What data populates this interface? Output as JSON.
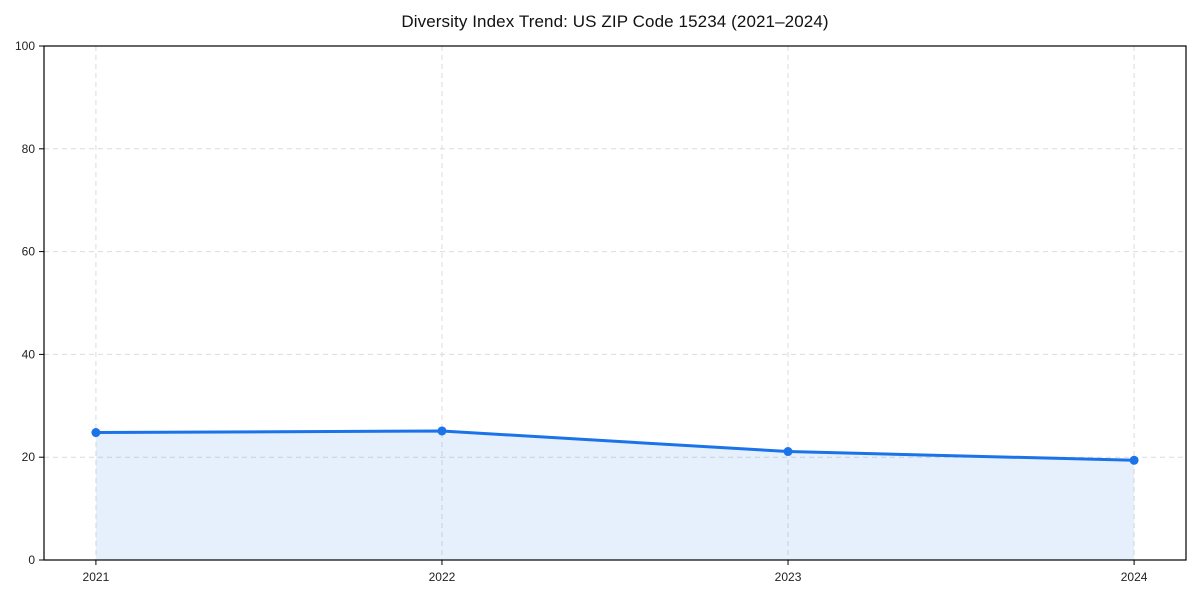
{
  "chart_data": {
    "type": "area",
    "title": "Diversity Index Trend: US ZIP Code 15234 (2021–2024)",
    "categories": [
      "2021",
      "2022",
      "2023",
      "2024"
    ],
    "series": [
      {
        "name": "Diversity Index",
        "values": [
          24.8,
          25.1,
          21.1,
          19.4
        ]
      }
    ],
    "xlabel": "",
    "ylabel": "",
    "ylim": [
      0,
      100
    ],
    "yticks": [
      0,
      20,
      40,
      60,
      80,
      100
    ],
    "grid": true,
    "legend": "none",
    "colors": {
      "line": "#1a73e8",
      "marker": "#1a73e8",
      "fill": "rgba(26,115,232,0.11)",
      "grid": "#dcdcdc",
      "spine": "#000000",
      "tick_label": "#222222",
      "background": "#ffffff"
    }
  }
}
